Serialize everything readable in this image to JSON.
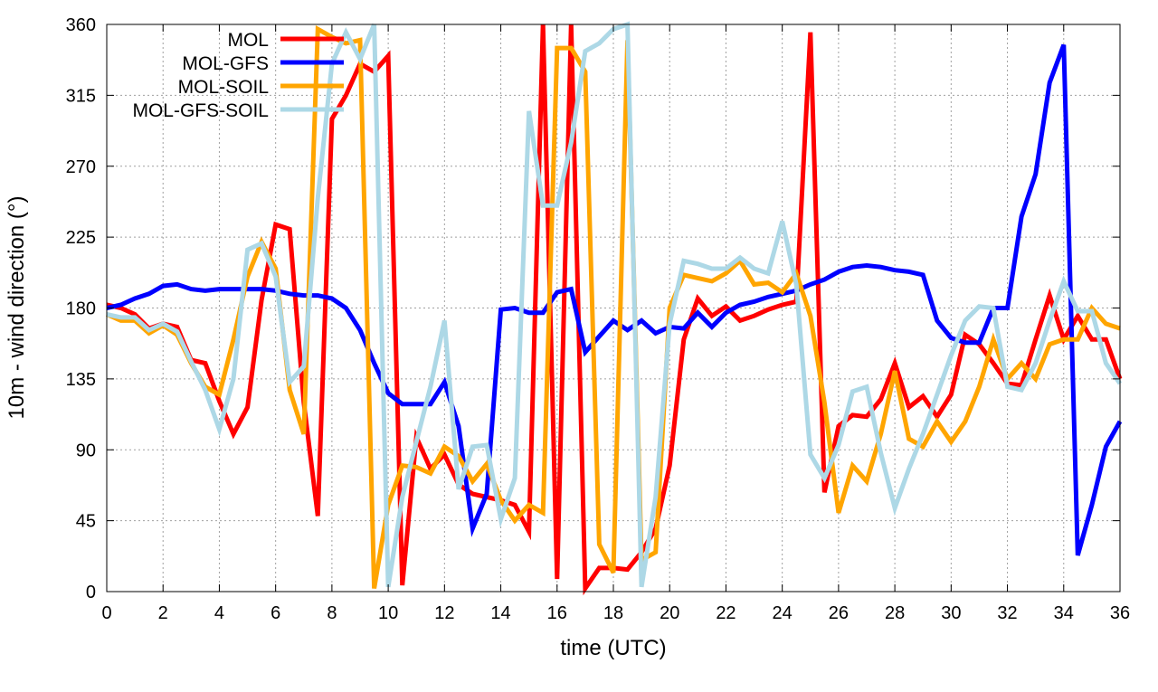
{
  "chart_data": {
    "type": "line",
    "title": "",
    "xlabel": "time (UTC)",
    "ylabel": "10m - wind direction (°)",
    "xlim": [
      0,
      36
    ],
    "ylim": [
      0,
      360
    ],
    "xticks": [
      0,
      2,
      4,
      6,
      8,
      10,
      12,
      14,
      16,
      18,
      20,
      22,
      24,
      26,
      28,
      30,
      32,
      34,
      36
    ],
    "yticks": [
      0,
      45,
      90,
      135,
      180,
      225,
      270,
      315,
      360
    ],
    "grid": true,
    "legend_position": "top-left",
    "x_step": 0.5,
    "series": [
      {
        "name": "MOL",
        "color": "#ff0000",
        "values": [
          182,
          180,
          176,
          167,
          170,
          168,
          147,
          145,
          121,
          100,
          117,
          185,
          233,
          230,
          120,
          48,
          300,
          315,
          335,
          330,
          340,
          4,
          98,
          78,
          87,
          68,
          62,
          60,
          58,
          55,
          38,
          360,
          8,
          360,
          2,
          15,
          15,
          14,
          25,
          40,
          80,
          160,
          186,
          175,
          181,
          172,
          175,
          179,
          182,
          184,
          355,
          63,
          105,
          112,
          111,
          122,
          145,
          117,
          124,
          111,
          125,
          163,
          157,
          145,
          132,
          131,
          160,
          188,
          160,
          175,
          160,
          160,
          135
        ]
      },
      {
        "name": "MOL-GFS",
        "color": "#0000ff",
        "values": [
          180,
          182,
          186,
          189,
          194,
          195,
          192,
          191,
          192,
          192,
          192,
          192,
          191,
          189,
          188,
          188,
          186,
          180,
          166,
          145,
          126,
          119,
          119,
          119,
          133,
          105,
          40,
          62,
          179,
          180,
          177,
          177,
          190,
          192,
          152,
          162,
          172,
          166,
          172,
          164,
          168,
          167,
          177,
          168,
          177,
          182,
          184,
          187,
          189,
          191,
          195,
          198,
          203,
          206,
          207,
          206,
          204,
          203,
          201,
          172,
          161,
          158,
          158,
          180,
          180,
          238,
          265,
          323,
          347,
          23,
          55,
          92,
          108
        ]
      },
      {
        "name": "MOL-SOIL",
        "color": "#ffa500",
        "values": [
          176,
          172,
          172,
          164,
          169,
          163,
          145,
          130,
          125,
          160,
          200,
          222,
          205,
          128,
          100,
          357,
          352,
          348,
          350,
          2,
          55,
          80,
          79,
          75,
          92,
          86,
          70,
          81,
          58,
          45,
          55,
          50,
          345,
          345,
          330,
          30,
          12,
          350,
          20,
          25,
          180,
          201,
          199,
          197,
          202,
          210,
          195,
          196,
          190,
          202,
          175,
          120,
          50,
          80,
          70,
          100,
          140,
          97,
          92,
          108,
          95,
          108,
          130,
          160,
          135,
          145,
          135,
          157,
          160,
          160,
          180,
          170,
          167
        ]
      },
      {
        "name": "MOL-GFS-SOIL",
        "color": "#add8e6",
        "values": [
          176,
          174,
          174,
          166,
          170,
          165,
          146,
          128,
          103,
          135,
          217,
          221,
          200,
          133,
          143,
          250,
          335,
          355,
          338,
          360,
          3,
          60,
          95,
          130,
          172,
          65,
          92,
          93,
          46,
          72,
          305,
          245,
          245,
          285,
          343,
          348,
          357,
          360,
          3,
          60,
          170,
          210,
          208,
          205,
          205,
          212,
          205,
          202,
          235,
          195,
          87,
          72,
          93,
          127,
          130,
          88,
          53,
          78,
          100,
          125,
          150,
          172,
          181,
          180,
          130,
          128,
          145,
          172,
          197,
          178,
          178,
          145,
          132
        ]
      }
    ]
  }
}
